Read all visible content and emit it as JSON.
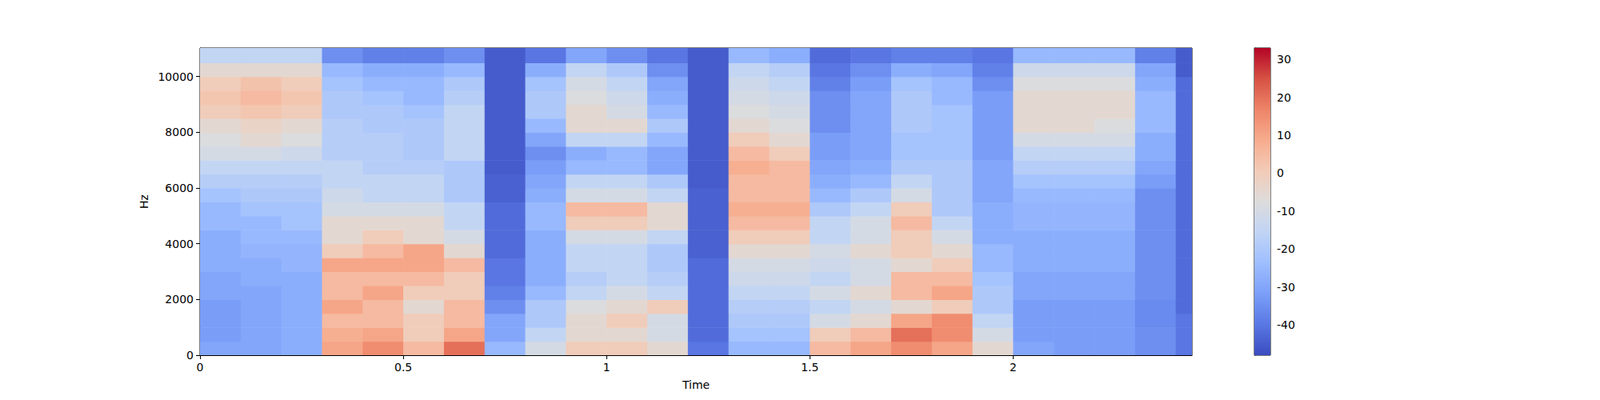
{
  "chart_data": {
    "type": "heatmap",
    "xlabel": "Time",
    "ylabel": "Hz",
    "xlim": [
      0,
      2.44
    ],
    "ylim": [
      0,
      11025
    ],
    "xticks": [
      0,
      0.5,
      1,
      1.5,
      2
    ],
    "yticks": [
      0,
      2000,
      4000,
      6000,
      8000,
      10000
    ],
    "x_edges": [
      0,
      0.1,
      0.2,
      0.3,
      0.4,
      0.5,
      0.6,
      0.7,
      0.8,
      0.9,
      1.0,
      1.1,
      1.2,
      1.3,
      1.4,
      1.5,
      1.6,
      1.7,
      1.8,
      1.9,
      2.0,
      2.1,
      2.2,
      2.3,
      2.4,
      2.44
    ],
    "y_edges": [
      0,
      500,
      1000,
      1500,
      2000,
      2500,
      3000,
      3500,
      4000,
      4500,
      5000,
      5500,
      6000,
      6500,
      7000,
      7500,
      8000,
      8500,
      9000,
      9500,
      10000,
      10500,
      11025
    ],
    "values": [
      [
        -30,
        -30,
        -28,
        10,
        15,
        5,
        20,
        -25,
        -10,
        0,
        0,
        -5,
        -40,
        -25,
        -25,
        5,
        10,
        15,
        10,
        -5,
        -30,
        -32,
        -32,
        -35,
        -40
      ],
      [
        -32,
        -30,
        -28,
        8,
        10,
        0,
        10,
        -30,
        -15,
        -5,
        -5,
        -10,
        -42,
        -22,
        -22,
        0,
        5,
        20,
        15,
        -10,
        -32,
        -32,
        -32,
        -35,
        -40
      ],
      [
        -32,
        -30,
        -28,
        5,
        5,
        0,
        5,
        -30,
        -20,
        -5,
        0,
        -10,
        -42,
        -20,
        -20,
        -10,
        -5,
        10,
        15,
        -15,
        -32,
        -32,
        -32,
        -36,
        -40
      ],
      [
        -32,
        -30,
        -28,
        10,
        5,
        -5,
        5,
        -35,
        -20,
        -8,
        -5,
        0,
        -42,
        -18,
        -18,
        -15,
        -10,
        -5,
        0,
        -20,
        -32,
        -32,
        -32,
        -36,
        -42
      ],
      [
        -30,
        -30,
        -28,
        5,
        10,
        0,
        0,
        -38,
        -25,
        -15,
        -10,
        -15,
        -42,
        -15,
        -15,
        -10,
        -5,
        5,
        10,
        -20,
        -30,
        -30,
        -30,
        -35,
        -42
      ],
      [
        -30,
        -28,
        -28,
        5,
        5,
        5,
        0,
        -40,
        -28,
        -18,
        -15,
        -18,
        -42,
        -12,
        -12,
        -15,
        -10,
        5,
        5,
        -22,
        -30,
        -30,
        -30,
        -35,
        -42
      ],
      [
        -28,
        -28,
        -26,
        10,
        10,
        10,
        5,
        -40,
        -28,
        -15,
        -15,
        -20,
        -42,
        -10,
        -10,
        -12,
        -10,
        -5,
        0,
        -25,
        -28,
        -28,
        -28,
        -35,
        -42
      ],
      [
        -28,
        -26,
        -26,
        0,
        5,
        10,
        -5,
        -42,
        -28,
        -15,
        -15,
        -20,
        -44,
        -5,
        -5,
        -10,
        -5,
        0,
        -5,
        -25,
        -28,
        -28,
        -28,
        -35,
        -42
      ],
      [
        -28,
        -25,
        -25,
        -5,
        0,
        -5,
        -10,
        -42,
        -28,
        -10,
        -10,
        -15,
        -44,
        0,
        0,
        -15,
        -10,
        0,
        -10,
        -28,
        -28,
        -28,
        -28,
        -35,
        -42
      ],
      [
        -25,
        -25,
        -22,
        -5,
        -5,
        -5,
        -15,
        -42,
        -25,
        0,
        0,
        -5,
        -44,
        5,
        5,
        -15,
        -10,
        5,
        -15,
        -28,
        -26,
        -26,
        -26,
        -35,
        -42
      ],
      [
        -25,
        -22,
        -22,
        -10,
        -10,
        -10,
        -15,
        -42,
        -25,
        5,
        5,
        -5,
        -44,
        8,
        8,
        -20,
        -15,
        0,
        -20,
        -28,
        -26,
        -26,
        -26,
        -35,
        -42
      ],
      [
        -22,
        -20,
        -20,
        -12,
        -15,
        -15,
        -20,
        -44,
        -28,
        -10,
        -10,
        -15,
        -44,
        5,
        5,
        -25,
        -20,
        -10,
        -20,
        -30,
        -25,
        -25,
        -25,
        -35,
        -42
      ],
      [
        -18,
        -18,
        -18,
        -15,
        -15,
        -15,
        -20,
        -44,
        -30,
        -15,
        -15,
        -20,
        -45,
        5,
        5,
        -28,
        -25,
        -15,
        -20,
        -30,
        -22,
        -22,
        -22,
        -32,
        -42
      ],
      [
        -15,
        -15,
        -15,
        -15,
        -18,
        -18,
        -20,
        -45,
        -32,
        -25,
        -25,
        -30,
        -45,
        8,
        5,
        -30,
        -28,
        -20,
        -20,
        -30,
        -18,
        -18,
        -18,
        -30,
        -42
      ],
      [
        -10,
        -10,
        -12,
        -18,
        -18,
        -20,
        -15,
        -45,
        -35,
        -28,
        -25,
        -30,
        -45,
        5,
        0,
        -32,
        -30,
        -22,
        -22,
        -32,
        -15,
        -15,
        -15,
        -28,
        -42
      ],
      [
        -8,
        -5,
        -8,
        -18,
        -18,
        -20,
        -15,
        -45,
        -30,
        -15,
        -15,
        -25,
        -45,
        0,
        -5,
        -32,
        -30,
        -22,
        -22,
        -32,
        -10,
        -10,
        -10,
        -28,
        -42
      ],
      [
        -5,
        -3,
        -5,
        -18,
        -20,
        -20,
        -15,
        -45,
        -25,
        -5,
        -5,
        -20,
        -45,
        -5,
        -8,
        -35,
        -30,
        -20,
        -22,
        -32,
        -5,
        -5,
        -8,
        -25,
        -42
      ],
      [
        0,
        2,
        0,
        -20,
        -20,
        -22,
        -15,
        -45,
        -20,
        -5,
        -10,
        -25,
        -45,
        -8,
        -10,
        -35,
        -30,
        -20,
        -22,
        -32,
        -5,
        -5,
        -5,
        -25,
        -42
      ],
      [
        2,
        5,
        2,
        -20,
        -22,
        -25,
        -18,
        -45,
        -20,
        -8,
        -12,
        -28,
        -45,
        -10,
        -12,
        -35,
        -30,
        -20,
        -25,
        -32,
        -5,
        -5,
        -5,
        -25,
        -42
      ],
      [
        0,
        3,
        0,
        -22,
        -25,
        -25,
        -20,
        -45,
        -22,
        -10,
        -15,
        -30,
        -45,
        -12,
        -15,
        -38,
        -32,
        -22,
        -25,
        -35,
        -8,
        -8,
        -8,
        -28,
        -42
      ],
      [
        -5,
        -5,
        -5,
        -25,
        -28,
        -28,
        -25,
        -45,
        -28,
        -15,
        -20,
        -35,
        -45,
        -15,
        -18,
        -40,
        -35,
        -28,
        -30,
        -38,
        -12,
        -12,
        -12,
        -30,
        -45
      ],
      [
        -15,
        -15,
        -15,
        -35,
        -38,
        -38,
        -35,
        -45,
        -40,
        -30,
        -35,
        -40,
        -45,
        -25,
        -28,
        -42,
        -40,
        -38,
        -38,
        -40,
        -25,
        -25,
        -25,
        -38,
        -45
      ]
    ],
    "colorbar_range": [
      -48,
      33
    ],
    "colorbar_ticks": [
      -40,
      -30,
      -20,
      -10,
      0,
      10,
      20,
      30
    ]
  }
}
